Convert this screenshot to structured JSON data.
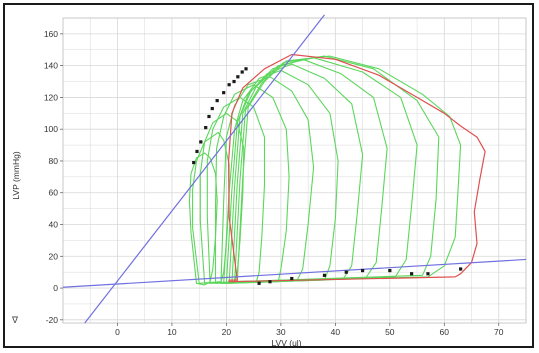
{
  "chart_data": {
    "type": "line",
    "title": "",
    "xlabel": "LVV (ul)",
    "ylabel": "LVP (mmHg)",
    "xlim": [
      -10,
      75
    ],
    "ylim": [
      -22,
      170
    ],
    "xticks": [
      0,
      10,
      20,
      30,
      40,
      50,
      60,
      70
    ],
    "yticks": [
      -20,
      0,
      20,
      40,
      60,
      80,
      100,
      120,
      140,
      160
    ],
    "grid": true,
    "corner_mark": "∇",
    "colors": {
      "grid": "#d8d8d8",
      "loops": "#5cd65c",
      "reference_loop": "#e05050",
      "esp_line": "#7070e0",
      "points": "#1a1a1a"
    },
    "esp_relation": {
      "name": "",
      "x": [
        -6,
        38
      ],
      "y": [
        -22,
        172
      ]
    },
    "edp_relation": {
      "name": "",
      "x": [
        -10,
        75
      ],
      "y": [
        0.5,
        18
      ]
    },
    "reference_loop": {
      "x": [
        22,
        20.5,
        20.4,
        21,
        23,
        27,
        32,
        40,
        48,
        55,
        60,
        63,
        66,
        67.5,
        66.5,
        65.5,
        66,
        65,
        63,
        62,
        20.5,
        20.5
      ],
      "y": [
        5,
        45,
        80,
        110,
        126,
        138,
        147,
        144,
        134,
        120,
        110,
        102,
        95,
        86,
        68,
        48,
        28,
        16,
        9,
        7,
        4,
        5
      ]
    },
    "loops": [
      {
        "x": [
          14.5,
          13.5,
          13.2,
          13.5,
          14.5,
          16,
          17,
          18,
          18.3,
          18,
          17.5,
          17,
          16,
          14.5
        ],
        "y": [
          3,
          35,
          55,
          72,
          82,
          85,
          82,
          72,
          55,
          32,
          12,
          4,
          2,
          3
        ]
      },
      {
        "x": [
          15,
          13.8,
          13.8,
          14.5,
          16,
          18.5,
          19.5,
          20.5,
          20.5,
          20,
          19.5,
          19,
          15
        ],
        "y": [
          3,
          38,
          62,
          80,
          92,
          98,
          93,
          78,
          55,
          28,
          10,
          4,
          3
        ]
      },
      {
        "x": [
          16,
          15.2,
          15.2,
          16,
          17.5,
          20,
          22,
          23.2,
          23,
          22.5,
          22,
          21.5,
          16
        ],
        "y": [
          3,
          42,
          72,
          92,
          104,
          110,
          105,
          88,
          60,
          30,
          10,
          4,
          3
        ]
      },
      {
        "x": [
          17,
          16.5,
          16.5,
          17.5,
          19.5,
          22.5,
          25,
          27,
          27,
          26.5,
          26,
          25.5,
          17
        ],
        "y": [
          3,
          45,
          80,
          100,
          114,
          120,
          114,
          95,
          65,
          32,
          10,
          4,
          3
        ]
      },
      {
        "x": [
          18,
          18,
          18.2,
          19.5,
          21.5,
          25,
          28.5,
          31,
          31.5,
          31,
          30,
          29.5,
          18
        ],
        "y": [
          3,
          50,
          88,
          108,
          122,
          128,
          120,
          100,
          70,
          36,
          12,
          4,
          3
        ]
      },
      {
        "x": [
          19,
          19.5,
          20,
          21.5,
          24,
          28,
          32,
          35,
          36,
          35,
          34,
          33,
          19
        ],
        "y": [
          3,
          55,
          95,
          115,
          128,
          133,
          124,
          106,
          76,
          40,
          12,
          5,
          3
        ]
      },
      {
        "x": [
          19.5,
          20.5,
          21.5,
          23,
          26,
          30,
          35,
          39,
          40.5,
          40,
          39,
          38,
          19.5
        ],
        "y": [
          3,
          60,
          100,
          118,
          132,
          137,
          128,
          110,
          80,
          44,
          14,
          5,
          3
        ]
      },
      {
        "x": [
          20,
          21,
          22,
          24,
          27.5,
          32,
          38,
          43,
          45,
          44,
          43,
          41.5,
          20
        ],
        "y": [
          3,
          62,
          104,
          122,
          135,
          141,
          132,
          116,
          84,
          46,
          14,
          6,
          3
        ]
      },
      {
        "x": [
          20.5,
          21.5,
          22.5,
          24.5,
          28.5,
          34,
          41,
          47,
          49.5,
          48.5,
          47.5,
          45.5,
          20.5
        ],
        "y": [
          3,
          64,
          108,
          124,
          138,
          144,
          135,
          120,
          88,
          50,
          16,
          6,
          3
        ]
      },
      {
        "x": [
          21,
          22,
          23,
          25.5,
          29.5,
          36,
          45,
          52,
          55,
          54,
          53,
          51,
          21
        ],
        "y": [
          3,
          66,
          110,
          127,
          140,
          145,
          136,
          120,
          90,
          52,
          18,
          7,
          4
        ]
      },
      {
        "x": [
          21.5,
          22.5,
          23.5,
          26.5,
          30.5,
          38,
          47,
          55,
          59,
          58.5,
          57.5,
          56,
          21.5
        ],
        "y": [
          4,
          68,
          112,
          129,
          142,
          146,
          138,
          118,
          95,
          56,
          20,
          8,
          4
        ]
      },
      {
        "x": [
          22,
          23,
          24,
          27,
          31,
          39,
          48,
          56,
          61,
          63,
          62.5,
          62,
          60,
          57,
          22
        ],
        "y": [
          4,
          70,
          114,
          130,
          143,
          146,
          138,
          122,
          108,
          90,
          60,
          32,
          14,
          7,
          4
        ]
      }
    ],
    "esp_points": {
      "x": [
        14,
        14.6,
        15.3,
        16.2,
        16.8,
        17.4,
        18.3,
        19.5,
        20.5,
        21.4,
        22.1,
        22.9,
        23.6
      ],
      "y": [
        79,
        86,
        92,
        101,
        108,
        113,
        118,
        123,
        128,
        130,
        133,
        136,
        138
      ]
    },
    "edp_points": {
      "x": [
        26,
        28,
        32,
        38,
        42,
        45,
        50,
        54,
        57,
        63
      ],
      "y": [
        3,
        4,
        6,
        8,
        10,
        11,
        11,
        9,
        9,
        12
      ]
    }
  }
}
